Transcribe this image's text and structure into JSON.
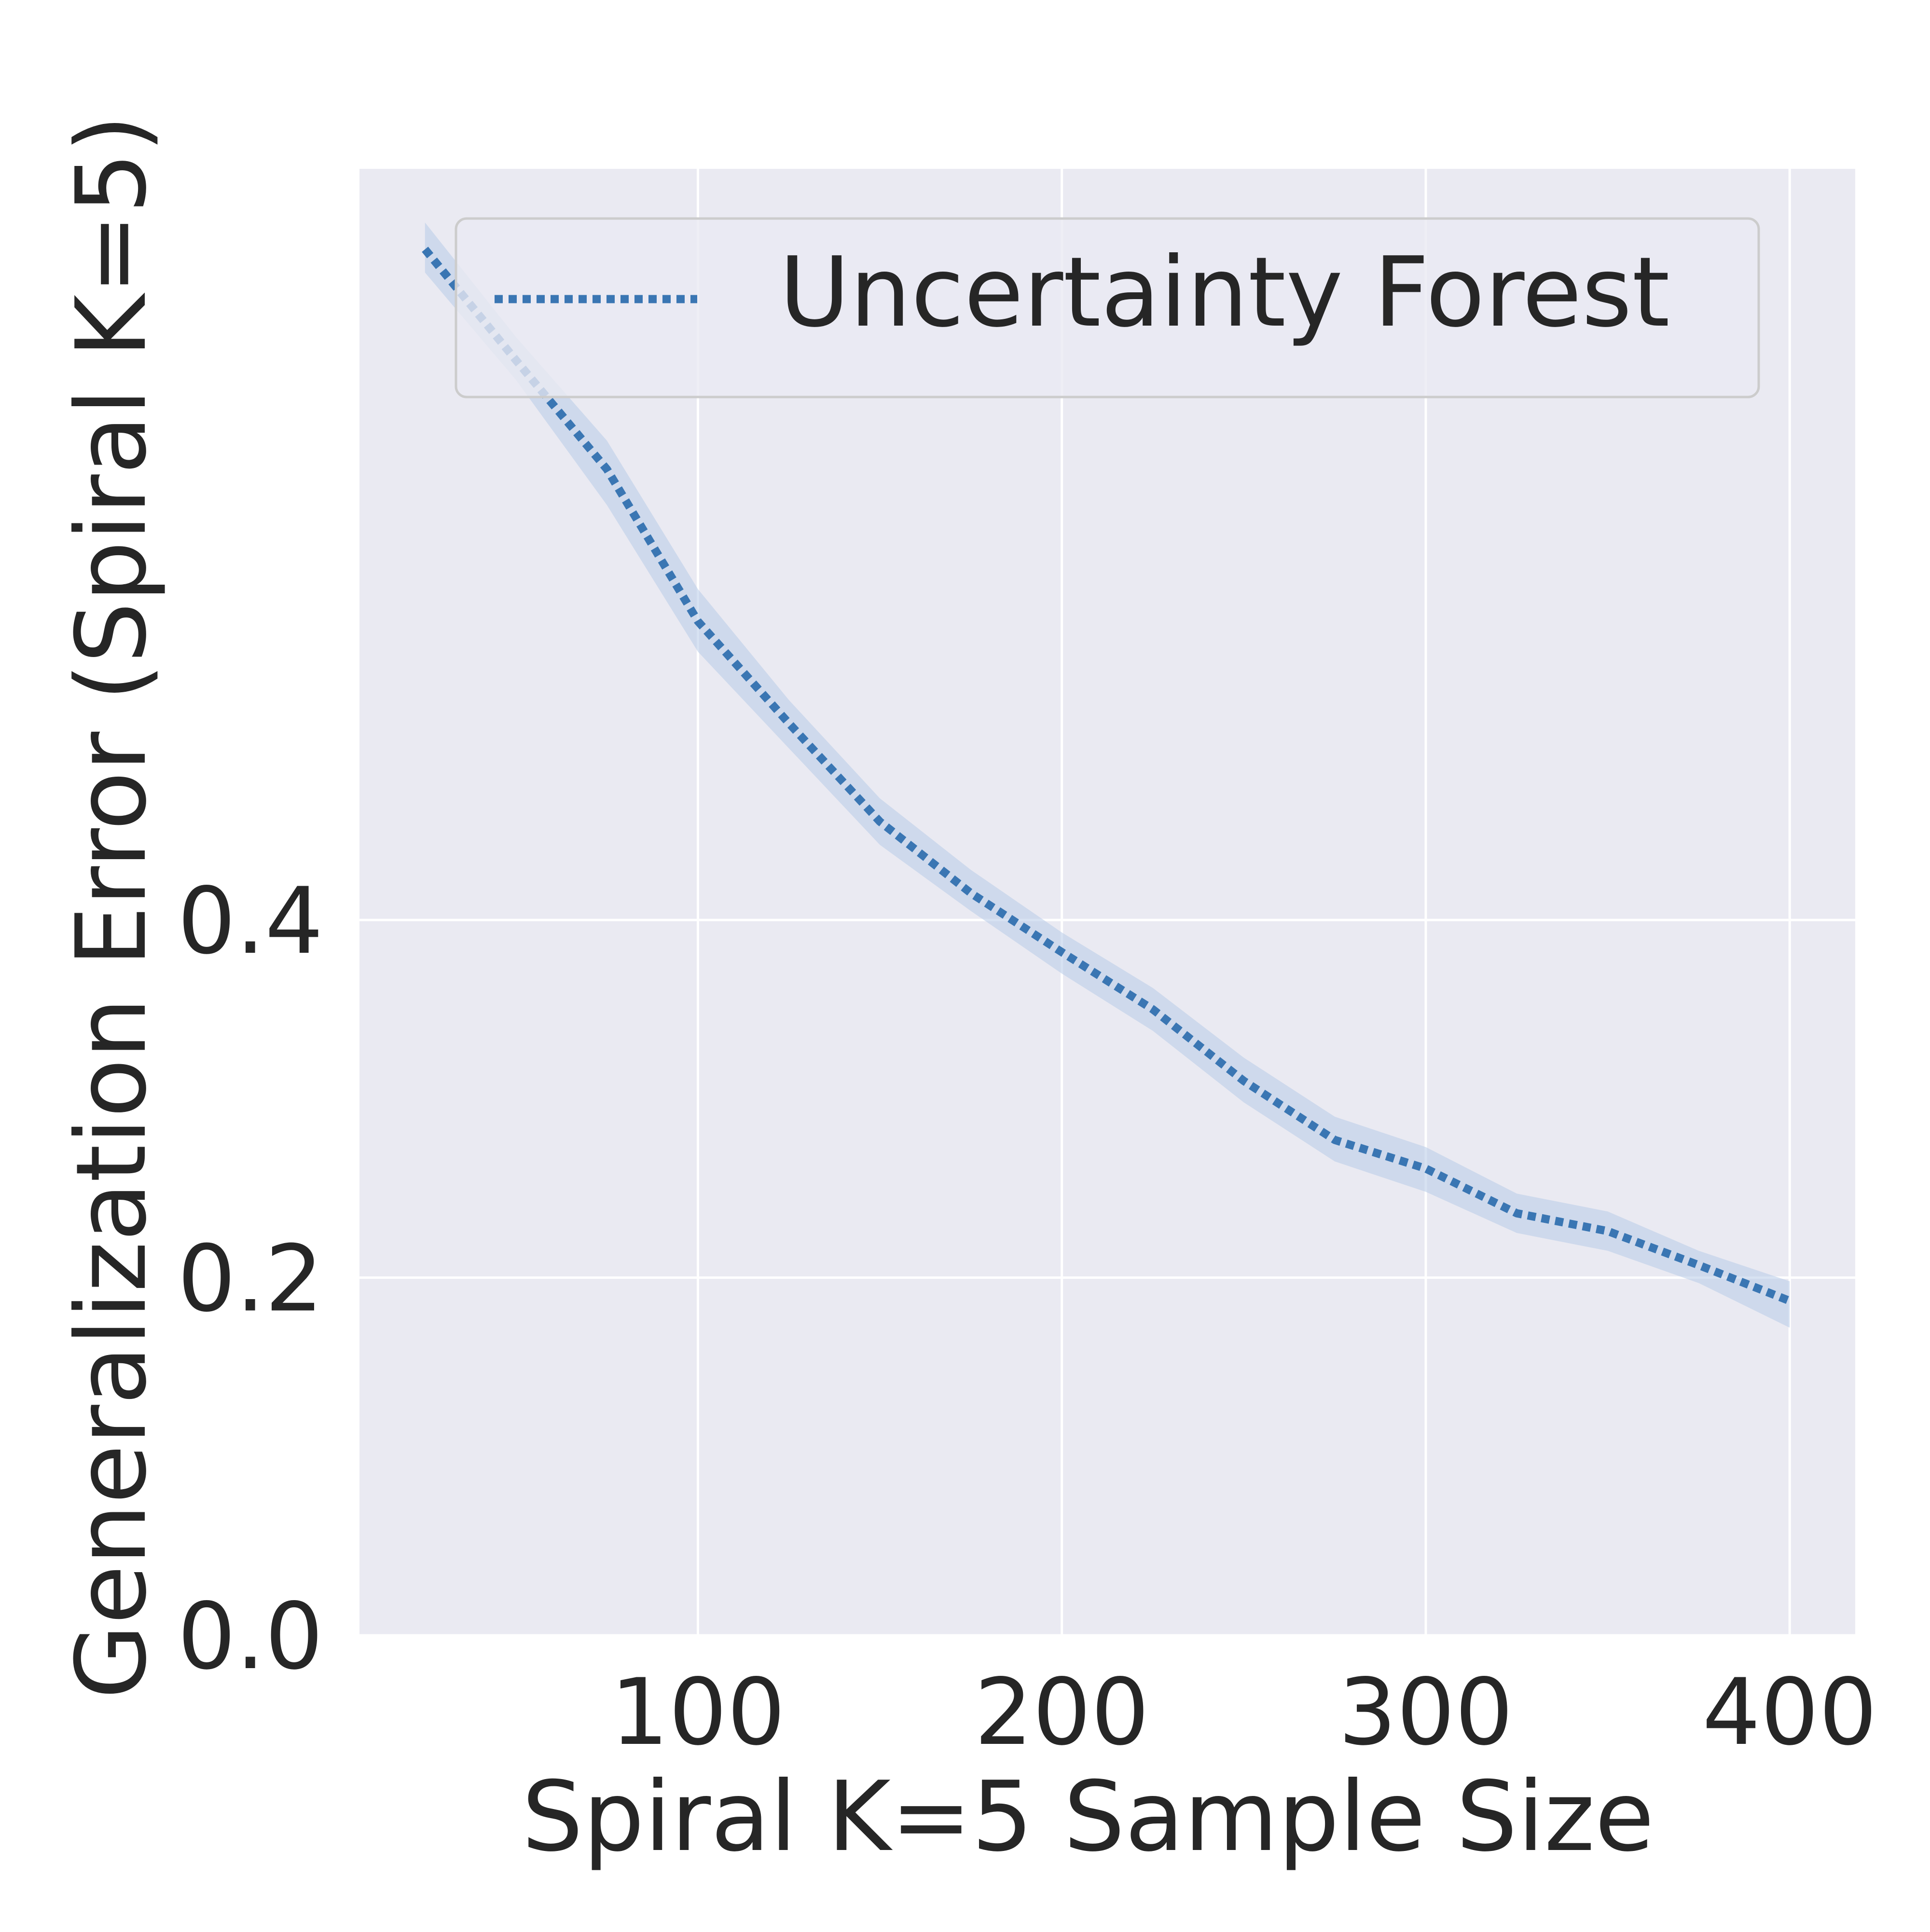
{
  "chart_data": {
    "type": "line",
    "title": "",
    "xlabel": "Spiral K=5 Sample Size",
    "ylabel": "Generalization Error (Spiral K=5)",
    "xlim": [
      7,
      418
    ],
    "ylim": [
      0.0,
      0.82
    ],
    "xticks": [
      100,
      200,
      300,
      400
    ],
    "xtick_labels": [
      "100",
      "200",
      "300",
      "400"
    ],
    "yticks": [
      0.0,
      0.2,
      0.4
    ],
    "ytick_labels": [
      "0.0",
      "0.2",
      "0.4"
    ],
    "grid": true,
    "legend_position": "top-right",
    "series": [
      {
        "name": "Uncertainty Forest",
        "color": "#3a76b3",
        "band_color": "#b6cbe8",
        "line_style": "dotted",
        "x": [
          25,
          50,
          75,
          100,
          125,
          150,
          175,
          200,
          225,
          250,
          275,
          300,
          325,
          350,
          375,
          400
        ],
        "y": [
          0.775,
          0.713,
          0.652,
          0.567,
          0.51,
          0.455,
          0.415,
          0.382,
          0.35,
          0.31,
          0.277,
          0.261,
          0.236,
          0.226,
          0.207,
          0.187
        ],
        "y_lower": [
          0.762,
          0.702,
          0.632,
          0.55,
          0.496,
          0.442,
          0.405,
          0.37,
          0.338,
          0.298,
          0.265,
          0.248,
          0.225,
          0.215,
          0.197,
          0.172
        ],
        "y_upper": [
          0.79,
          0.726,
          0.668,
          0.585,
          0.523,
          0.468,
          0.428,
          0.393,
          0.362,
          0.323,
          0.29,
          0.273,
          0.247,
          0.237,
          0.215,
          0.198
        ]
      }
    ]
  }
}
